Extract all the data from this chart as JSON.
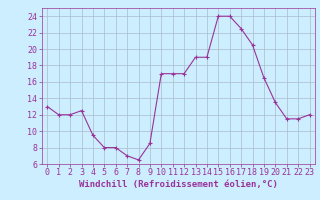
{
  "x": [
    0,
    1,
    2,
    3,
    4,
    5,
    6,
    7,
    8,
    9,
    10,
    11,
    12,
    13,
    14,
    15,
    16,
    17,
    18,
    19,
    20,
    21,
    22,
    23
  ],
  "y": [
    13,
    12,
    12,
    12.5,
    9.5,
    8,
    8,
    7,
    6.5,
    8.5,
    17,
    17,
    17,
    19,
    19,
    24,
    24,
    22.5,
    20.5,
    16.5,
    13.5,
    11.5,
    11.5,
    12
  ],
  "line_color": "#993399",
  "marker": "+",
  "background_color": "#cceeff",
  "grid_color": "#aabbcc",
  "xlabel": "Windchill (Refroidissement éolien,°C)",
  "xlabel_fontsize": 6.5,
  "tick_fontsize": 6,
  "ylim": [
    6,
    25
  ],
  "yticks": [
    6,
    8,
    10,
    12,
    14,
    16,
    18,
    20,
    22,
    24
  ],
  "xticks": [
    0,
    1,
    2,
    3,
    4,
    5,
    6,
    7,
    8,
    9,
    10,
    11,
    12,
    13,
    14,
    15,
    16,
    17,
    18,
    19,
    20,
    21,
    22,
    23
  ],
  "figsize": [
    3.2,
    2.0
  ],
  "dpi": 100
}
